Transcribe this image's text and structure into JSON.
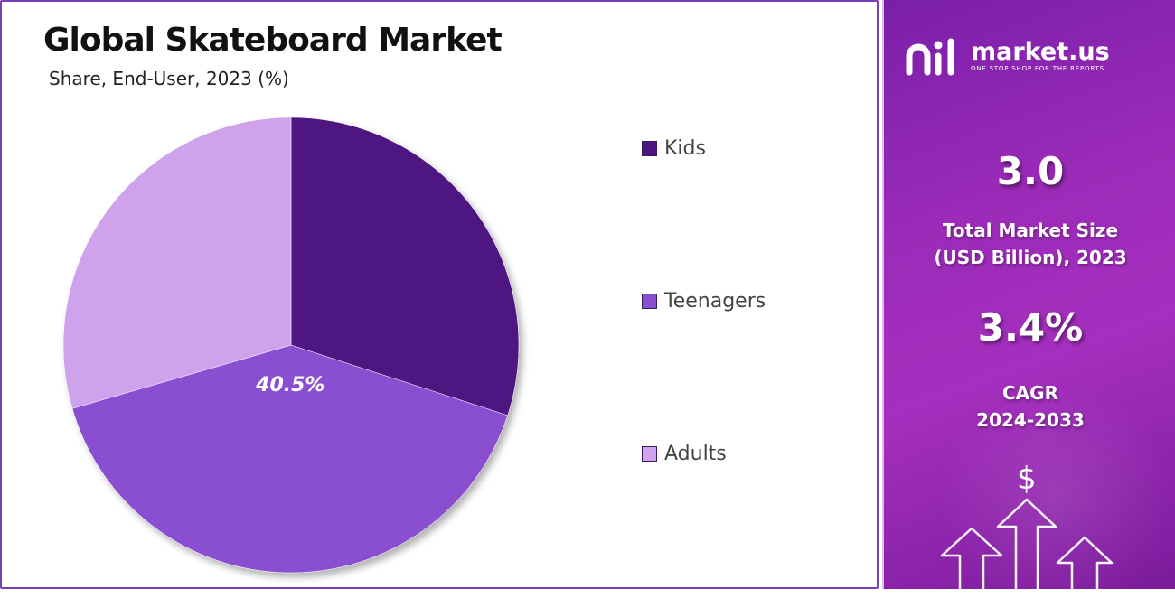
{
  "chart_data": {
    "type": "pie",
    "title": "Global Skateboard Market",
    "subtitle": "Share, End-User, 2023 (%)",
    "categories": [
      "Kids",
      "Teenagers",
      "Adults"
    ],
    "values": [
      30.0,
      40.5,
      29.5
    ],
    "colors": [
      "#4e1480",
      "#8a4fd0",
      "#cfa3ec"
    ],
    "data_labels": [
      "",
      "40.5%",
      ""
    ],
    "legend_position": "right"
  },
  "branding": {
    "name": "market.us",
    "tagline": "ONE STOP SHOP FOR THE REPORTS",
    "icon": "market-us-logo-icon"
  },
  "stats": {
    "market_size_value": "3.0",
    "market_size_label_line1": "Total Market Size",
    "market_size_label_line2": "(USD Billion), 2023",
    "cagr_value": "3.4%",
    "cagr_label_line1": "CAGR",
    "cagr_label_line2": "2024-2033"
  },
  "decor": {
    "currency_symbol": "$"
  }
}
